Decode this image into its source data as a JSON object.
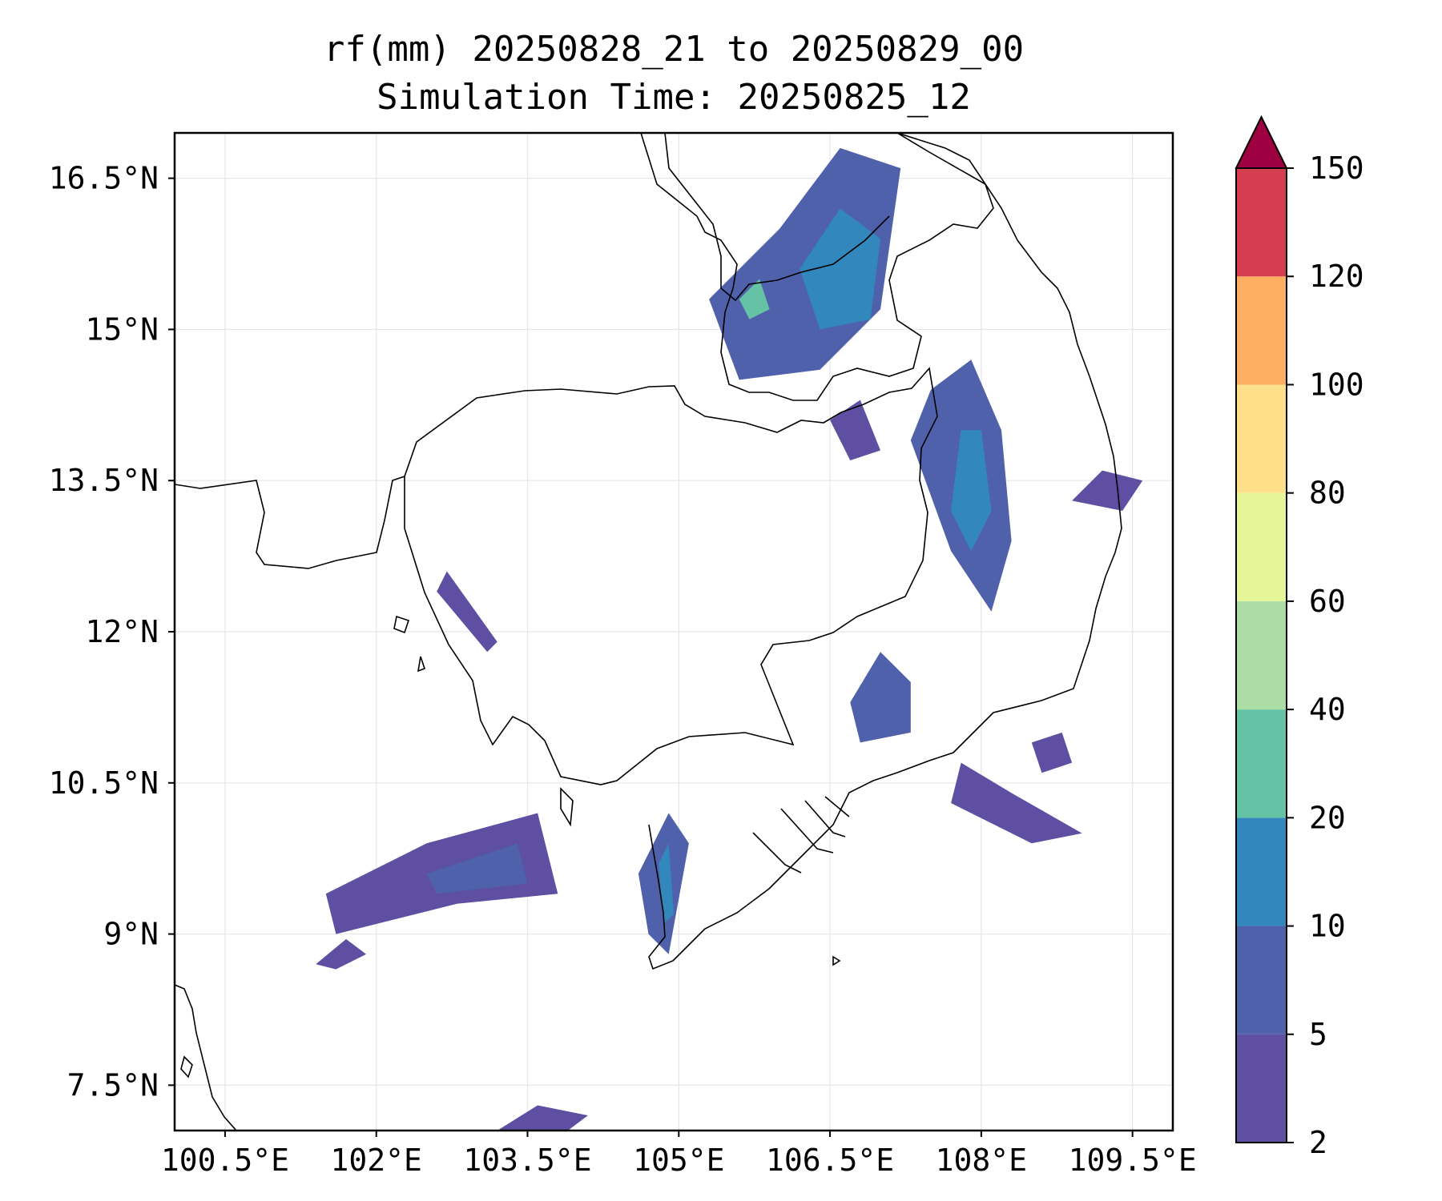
{
  "title_line1": "rf(mm) 20250828_21 to 20250829_00",
  "title_line2": "Simulation Time: 20250825_12",
  "map": {
    "lon_range": [
      100.0,
      109.9
    ],
    "lat_range": [
      7.05,
      16.95
    ],
    "lon_ticks": [
      {
        "value": 100.5,
        "label": "100.5°E"
      },
      {
        "value": 102.0,
        "label": "102°E"
      },
      {
        "value": 103.5,
        "label": "103.5°E"
      },
      {
        "value": 105.0,
        "label": "105°E"
      },
      {
        "value": 106.5,
        "label": "106.5°E"
      },
      {
        "value": 108.0,
        "label": "108°E"
      },
      {
        "value": 109.5,
        "label": "109.5°E"
      }
    ],
    "lat_ticks": [
      {
        "value": 7.5,
        "label": "7.5°N"
      },
      {
        "value": 9.0,
        "label": "9°N"
      },
      {
        "value": 10.5,
        "label": "10.5°N"
      },
      {
        "value": 12.0,
        "label": "12°N"
      },
      {
        "value": 13.5,
        "label": "13.5°N"
      },
      {
        "value": 15.0,
        "label": "15°N"
      },
      {
        "value": 16.5,
        "label": "16.5°N"
      }
    ],
    "grid": true,
    "boundary_color": "#000000",
    "rain_areas": [
      {
        "level": "5-10",
        "ring": [
          [
            106.0,
            16.0
          ],
          [
            106.6,
            16.8
          ],
          [
            107.2,
            16.6
          ],
          [
            107.0,
            15.2
          ],
          [
            106.4,
            14.6
          ],
          [
            105.6,
            14.5
          ],
          [
            105.3,
            15.3
          ]
        ]
      },
      {
        "level": "10-20",
        "ring": [
          [
            106.2,
            15.6
          ],
          [
            106.6,
            16.2
          ],
          [
            107.0,
            15.9
          ],
          [
            106.9,
            15.1
          ],
          [
            106.4,
            15.0
          ]
        ]
      },
      {
        "level": "20-40",
        "ring": [
          [
            105.6,
            15.3
          ],
          [
            105.8,
            15.5
          ],
          [
            105.9,
            15.2
          ],
          [
            105.7,
            15.1
          ]
        ]
      },
      {
        "level": "5-10",
        "ring": [
          [
            107.5,
            14.4
          ],
          [
            107.9,
            14.7
          ],
          [
            108.2,
            14.0
          ],
          [
            108.3,
            12.9
          ],
          [
            108.1,
            12.2
          ],
          [
            107.7,
            12.8
          ],
          [
            107.3,
            13.9
          ]
        ]
      },
      {
        "level": "10-20",
        "ring": [
          [
            107.8,
            14.0
          ],
          [
            108.0,
            14.0
          ],
          [
            108.1,
            13.2
          ],
          [
            107.9,
            12.8
          ],
          [
            107.7,
            13.2
          ]
        ]
      },
      {
        "level": "2-5",
        "ring": [
          [
            101.5,
            9.4
          ],
          [
            102.5,
            9.9
          ],
          [
            103.6,
            10.2
          ],
          [
            103.8,
            9.4
          ],
          [
            102.8,
            9.3
          ],
          [
            101.6,
            9.0
          ]
        ]
      },
      {
        "level": "5-10",
        "ring": [
          [
            102.5,
            9.6
          ],
          [
            103.4,
            9.9
          ],
          [
            103.5,
            9.5
          ],
          [
            102.6,
            9.4
          ]
        ]
      },
      {
        "level": "5-10",
        "ring": [
          [
            104.6,
            9.6
          ],
          [
            104.9,
            10.2
          ],
          [
            105.1,
            9.9
          ],
          [
            104.9,
            8.8
          ],
          [
            104.7,
            9.0
          ]
        ]
      },
      {
        "level": "10-20",
        "ring": [
          [
            104.8,
            9.7
          ],
          [
            104.9,
            9.9
          ],
          [
            104.95,
            9.2
          ],
          [
            104.85,
            9.1
          ]
        ]
      },
      {
        "level": "5-10",
        "ring": [
          [
            106.7,
            11.3
          ],
          [
            107.0,
            11.8
          ],
          [
            107.3,
            11.5
          ],
          [
            107.3,
            11.0
          ],
          [
            106.8,
            10.9
          ]
        ]
      },
      {
        "level": "2-5",
        "ring": [
          [
            107.8,
            10.7
          ],
          [
            108.3,
            10.4
          ],
          [
            109.0,
            10.0
          ],
          [
            108.5,
            9.9
          ],
          [
            107.7,
            10.3
          ]
        ]
      },
      {
        "level": "2-5",
        "ring": [
          [
            102.7,
            12.6
          ],
          [
            103.2,
            11.9
          ],
          [
            103.1,
            11.8
          ],
          [
            102.6,
            12.4
          ]
        ]
      },
      {
        "level": "2-5",
        "ring": [
          [
            103.2,
            7.05
          ],
          [
            103.6,
            7.3
          ],
          [
            104.1,
            7.2
          ],
          [
            103.9,
            7.05
          ]
        ]
      },
      {
        "level": "2-5",
        "ring": [
          [
            101.4,
            8.7
          ],
          [
            101.7,
            8.95
          ],
          [
            101.9,
            8.8
          ],
          [
            101.6,
            8.65
          ]
        ]
      },
      {
        "level": "2-5",
        "ring": [
          [
            108.9,
            13.3
          ],
          [
            109.2,
            13.6
          ],
          [
            109.6,
            13.5
          ],
          [
            109.4,
            13.2
          ]
        ]
      },
      {
        "level": "2-5",
        "ring": [
          [
            106.5,
            14.1
          ],
          [
            106.8,
            14.3
          ],
          [
            107.0,
            13.8
          ],
          [
            106.7,
            13.7
          ]
        ]
      },
      {
        "level": "2-5",
        "ring": [
          [
            108.5,
            10.9
          ],
          [
            108.8,
            11.0
          ],
          [
            108.9,
            10.7
          ],
          [
            108.6,
            10.6
          ]
        ]
      }
    ]
  },
  "colorbar": {
    "levels": [
      2,
      5,
      10,
      20,
      40,
      60,
      80,
      100,
      120,
      150
    ],
    "colors": [
      "#5e4fa2",
      "#4f61aa",
      "#3288bd",
      "#66c2a5",
      "#abdda4",
      "#e6f598",
      "#fee08b",
      "#fdae61",
      "#d53e4f"
    ],
    "extend_color": "#9e0142"
  }
}
